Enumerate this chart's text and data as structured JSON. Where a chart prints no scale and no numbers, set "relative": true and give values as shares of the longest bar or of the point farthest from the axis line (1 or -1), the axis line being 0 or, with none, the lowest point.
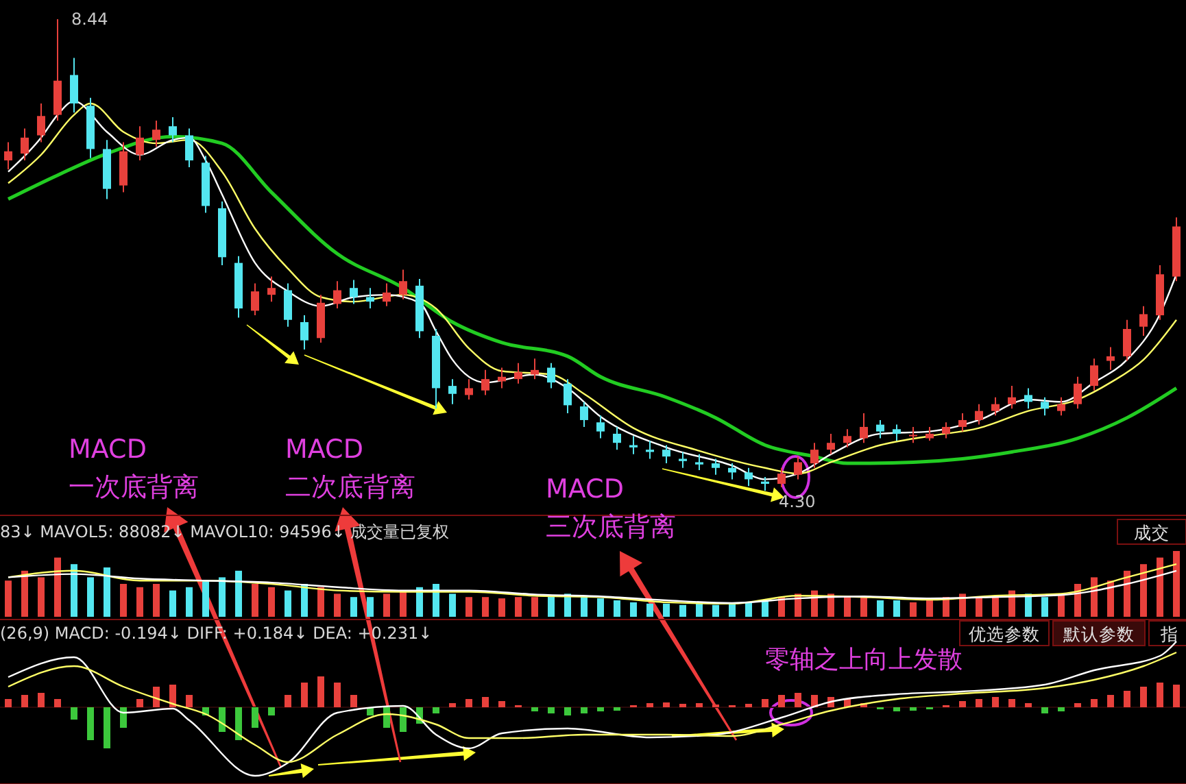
{
  "chart_data": [
    {
      "type": "candlestick",
      "categories": [
        null,
        null,
        null,
        null,
        null,
        null,
        null,
        null,
        null,
        null,
        null,
        null,
        null,
        null,
        null,
        null,
        null,
        null,
        null,
        null,
        null,
        null,
        null,
        null,
        null,
        null,
        null,
        null,
        null,
        null,
        null,
        null,
        null,
        null,
        null,
        null,
        null,
        null,
        null,
        null,
        null,
        null,
        null,
        null,
        null,
        null,
        null,
        null,
        null,
        null,
        null,
        null,
        null,
        null,
        null,
        null,
        null,
        null,
        null,
        null,
        null,
        null,
        null,
        null,
        null,
        null,
        null,
        null,
        null,
        null,
        null,
        null
      ],
      "ohlc": [
        [
          7.2,
          7.36,
          7.12,
          7.28
        ],
        [
          7.26,
          7.48,
          7.2,
          7.4
        ],
        [
          7.42,
          7.7,
          7.36,
          7.59
        ],
        [
          7.6,
          8.44,
          7.55,
          7.9
        ],
        [
          7.95,
          8.1,
          7.62,
          7.7
        ],
        [
          7.68,
          7.75,
          7.22,
          7.3
        ],
        [
          7.3,
          7.38,
          6.86,
          6.95
        ],
        [
          6.98,
          7.36,
          6.92,
          7.28
        ],
        [
          7.25,
          7.5,
          7.2,
          7.4
        ],
        [
          7.38,
          7.55,
          7.32,
          7.47
        ],
        [
          7.5,
          7.58,
          7.36,
          7.42
        ],
        [
          7.42,
          7.48,
          7.14,
          7.2
        ],
        [
          7.18,
          7.24,
          6.74,
          6.8
        ],
        [
          6.78,
          6.84,
          6.28,
          6.35
        ],
        [
          6.3,
          6.36,
          5.82,
          5.9
        ],
        [
          5.88,
          6.12,
          5.84,
          6.05
        ],
        [
          6.02,
          6.18,
          5.96,
          6.08
        ],
        [
          6.06,
          6.12,
          5.74,
          5.8
        ],
        [
          5.78,
          5.84,
          5.54,
          5.62
        ],
        [
          5.64,
          6.02,
          5.6,
          5.95
        ],
        [
          5.94,
          6.14,
          5.9,
          6.06
        ],
        [
          6.08,
          6.15,
          5.94,
          6.0
        ],
        [
          6.0,
          6.08,
          5.9,
          5.96
        ],
        [
          5.96,
          6.12,
          5.92,
          6.04
        ],
        [
          6.02,
          6.24,
          5.98,
          6.14
        ],
        [
          6.1,
          6.16,
          5.64,
          5.7
        ],
        [
          5.66,
          5.72,
          5.02,
          5.2
        ],
        [
          5.22,
          5.28,
          5.06,
          5.15
        ],
        [
          5.14,
          5.28,
          5.1,
          5.2
        ],
        [
          5.18,
          5.36,
          5.14,
          5.28
        ],
        [
          5.26,
          5.38,
          5.2,
          5.3
        ],
        [
          5.28,
          5.42,
          5.24,
          5.34
        ],
        [
          5.32,
          5.46,
          5.28,
          5.36
        ],
        [
          5.38,
          5.42,
          5.2,
          5.25
        ],
        [
          5.24,
          5.28,
          4.98,
          5.05
        ],
        [
          5.04,
          5.08,
          4.86,
          4.92
        ],
        [
          4.9,
          4.96,
          4.76,
          4.82
        ],
        [
          4.8,
          4.86,
          4.66,
          4.72
        ],
        [
          4.7,
          4.78,
          4.62,
          4.68
        ],
        [
          4.66,
          4.74,
          4.58,
          4.64
        ],
        [
          4.66,
          4.7,
          4.54,
          4.6
        ],
        [
          4.58,
          4.64,
          4.5,
          4.56
        ],
        [
          4.55,
          4.62,
          4.48,
          4.53
        ],
        [
          4.54,
          4.58,
          4.44,
          4.5
        ],
        [
          4.5,
          4.54,
          4.4,
          4.46
        ],
        [
          4.46,
          4.5,
          4.34,
          4.4
        ],
        [
          4.38,
          4.42,
          4.3,
          4.36
        ],
        [
          4.36,
          4.5,
          4.33,
          4.45
        ],
        [
          4.44,
          4.6,
          4.4,
          4.55
        ],
        [
          4.54,
          4.72,
          4.5,
          4.66
        ],
        [
          4.66,
          4.8,
          4.62,
          4.72
        ],
        [
          4.72,
          4.84,
          4.68,
          4.78
        ],
        [
          4.76,
          4.98,
          4.72,
          4.86
        ],
        [
          4.88,
          4.92,
          4.76,
          4.82
        ],
        [
          4.84,
          4.88,
          4.74,
          4.8
        ],
        [
          4.78,
          4.86,
          4.72,
          4.79
        ],
        [
          4.76,
          4.86,
          4.74,
          4.8
        ],
        [
          4.8,
          4.9,
          4.76,
          4.86
        ],
        [
          4.86,
          4.98,
          4.82,
          4.92
        ],
        [
          4.92,
          5.06,
          4.88,
          5.0
        ],
        [
          5.0,
          5.12,
          4.96,
          5.06
        ],
        [
          5.06,
          5.22,
          5.02,
          5.12
        ],
        [
          5.14,
          5.2,
          5.02,
          5.08
        ],
        [
          5.08,
          5.12,
          4.96,
          5.02
        ],
        [
          5.0,
          5.12,
          4.96,
          5.06
        ],
        [
          5.06,
          5.3,
          5.02,
          5.24
        ],
        [
          5.22,
          5.46,
          5.18,
          5.4
        ],
        [
          5.44,
          5.56,
          5.36,
          5.48
        ],
        [
          5.48,
          5.8,
          5.44,
          5.72
        ],
        [
          5.74,
          5.92,
          5.66,
          5.85
        ],
        [
          5.84,
          6.28,
          5.8,
          6.2
        ],
        [
          6.18,
          6.7,
          6.14,
          6.62
        ]
      ],
      "series": [
        {
          "type": "line",
          "color": "#22cc22",
          "values": [
            6.86,
            null,
            null,
            7.07,
            null,
            null,
            7.26,
            null,
            null,
            null,
            7.41,
            null,
            null,
            7.35,
            null,
            null,
            6.92,
            null,
            null,
            null,
            6.38,
            null,
            null,
            null,
            6.08,
            null,
            null,
            5.78,
            null,
            null,
            5.6,
            null,
            null,
            null,
            5.48,
            null,
            5.3,
            null,
            null,
            null,
            5.12,
            null,
            null,
            4.94,
            null,
            null,
            4.7,
            null,
            null,
            4.6,
            null,
            4.54,
            null,
            null,
            null,
            4.55,
            null,
            null,
            4.58,
            null,
            null,
            4.64,
            null,
            null,
            null,
            4.76,
            null,
            null,
            4.94,
            null,
            null,
            5.2
          ]
        },
        {
          "type": "line",
          "color": "#ffff66",
          "values": [
            7.0,
            null,
            7.25,
            null,
            7.6,
            7.7,
            null,
            7.45,
            null,
            7.35,
            null,
            7.38,
            null,
            7.1,
            null,
            6.6,
            null,
            6.25,
            null,
            6.0,
            null,
            5.96,
            null,
            null,
            6.02,
            null,
            5.9,
            null,
            5.55,
            null,
            5.35,
            null,
            null,
            5.32,
            null,
            5.15,
            null,
            null,
            4.85,
            null,
            null,
            null,
            4.65,
            null,
            null,
            null,
            4.5,
            null,
            4.45,
            null,
            4.55,
            null,
            null,
            4.7,
            null,
            null,
            4.78,
            null,
            null,
            4.85,
            null,
            null,
            5.0,
            null,
            null,
            5.1,
            null,
            5.25,
            null,
            5.45,
            null,
            5.8
          ]
        },
        {
          "type": "line",
          "color": "#ffffff",
          "values": [
            7.1,
            null,
            7.4,
            7.6,
            7.72,
            null,
            7.45,
            null,
            7.25,
            null,
            7.38,
            7.4,
            7.2,
            6.9,
            null,
            6.3,
            null,
            6.05,
            null,
            5.92,
            null,
            6.0,
            null,
            6.02,
            null,
            5.95,
            5.7,
            5.45,
            null,
            5.25,
            null,
            null,
            5.32,
            null,
            5.2,
            null,
            4.95,
            null,
            null,
            null,
            4.68,
            null,
            null,
            null,
            4.52,
            null,
            4.4,
            null,
            4.45,
            null,
            4.62,
            null,
            null,
            4.8,
            null,
            null,
            4.82,
            null,
            null,
            4.92,
            null,
            null,
            5.1,
            null,
            5.08,
            null,
            5.25,
            null,
            5.45,
            null,
            5.85,
            6.2
          ]
        }
      ],
      "annotations": [
        "8.44",
        "4.30",
        "MACD\n一次底背离",
        "MACD\n二次底背离",
        "MACD\n三次底背离"
      ]
    },
    {
      "type": "bar",
      "relative": true,
      "title": "83↓ MAVOL5: 88082↓ MAVOL10: 94596↓ 成交量已复权",
      "categories": [
        null,
        null,
        null,
        null,
        null,
        null,
        null,
        null,
        null,
        null,
        null,
        null,
        null,
        null,
        null,
        null,
        null,
        null,
        null,
        null,
        null,
        null,
        null,
        null,
        null,
        null,
        null,
        null,
        null,
        null,
        null,
        null,
        null,
        null,
        null,
        null,
        null,
        null,
        null,
        null,
        null,
        null,
        null,
        null,
        null,
        null,
        null,
        null,
        null,
        null,
        null,
        null,
        null,
        null,
        null,
        null,
        null,
        null,
        null,
        null,
        null,
        null,
        null,
        null,
        null,
        null,
        null,
        null,
        null,
        null,
        null,
        null
      ],
      "series": [
        {
          "type": "bar",
          "values": [
            0.55,
            0.7,
            0.6,
            0.9,
            0.8,
            0.6,
            0.75,
            0.5,
            0.45,
            0.5,
            0.4,
            0.45,
            0.55,
            0.6,
            0.7,
            0.5,
            0.45,
            0.4,
            0.5,
            0.45,
            0.35,
            0.3,
            0.3,
            0.35,
            0.4,
            0.45,
            0.5,
            0.35,
            0.3,
            0.3,
            0.28,
            0.3,
            0.3,
            0.32,
            0.35,
            0.3,
            0.28,
            0.25,
            0.22,
            0.2,
            0.2,
            0.18,
            0.2,
            0.18,
            0.2,
            0.22,
            0.25,
            0.3,
            0.35,
            0.4,
            0.35,
            0.3,
            0.3,
            0.25,
            0.25,
            0.22,
            0.25,
            0.3,
            0.35,
            0.3,
            0.32,
            0.4,
            0.35,
            0.3,
            0.35,
            0.5,
            0.6,
            0.55,
            0.7,
            0.8,
            0.9,
            1
          ],
          "colors": [
            "#e8413c",
            "#e8413c",
            "#e8413c",
            "#e8413c",
            "#54e6f0",
            "#54e6f0",
            "#54e6f0",
            "#e8413c",
            "#e8413c",
            "#e8413c",
            "#54e6f0",
            "#54e6f0",
            "#54e6f0",
            "#54e6f0",
            "#54e6f0",
            "#e8413c",
            "#e8413c",
            "#54e6f0",
            "#54e6f0",
            "#e8413c",
            "#e8413c",
            "#54e6f0",
            "#54e6f0",
            "#e8413c",
            "#e8413c",
            "#54e6f0",
            "#54e6f0",
            "#54e6f0",
            "#e8413c",
            "#e8413c",
            "#e8413c",
            "#e8413c",
            "#e8413c",
            "#54e6f0",
            "#54e6f0",
            "#54e6f0",
            "#54e6f0",
            "#54e6f0",
            "#54e6f0",
            "#54e6f0",
            "#54e6f0",
            "#54e6f0",
            "#54e6f0",
            "#54e6f0",
            "#54e6f0",
            "#54e6f0",
            "#54e6f0",
            "#e8413c",
            "#e8413c",
            "#e8413c",
            "#e8413c",
            "#e8413c",
            "#e8413c",
            "#54e6f0",
            "#54e6f0",
            "#e8413c",
            "#e8413c",
            "#e8413c",
            "#e8413c",
            "#e8413c",
            "#e8413c",
            "#e8413c",
            "#54e6f0",
            "#54e6f0",
            "#e8413c",
            "#e8413c",
            "#e8413c",
            "#e8413c",
            "#e8413c",
            "#e8413c",
            "#e8413c",
            "#e8413c"
          ]
        },
        {
          "type": "line",
          "color": "#ffff66",
          "values": [
            0.6,
            null,
            null,
            null,
            0.7,
            null,
            null,
            null,
            0.55,
            null,
            null,
            null,
            0.55,
            null,
            null,
            null,
            0.5,
            null,
            null,
            null,
            0.4,
            null,
            null,
            null,
            0.38,
            null,
            null,
            null,
            0.38,
            null,
            null,
            null,
            0.32,
            null,
            null,
            null,
            0.3,
            null,
            null,
            null,
            0.22,
            null,
            null,
            null,
            0.2,
            null,
            null,
            null,
            0.32,
            null,
            null,
            null,
            0.3,
            null,
            null,
            null,
            0.26,
            null,
            null,
            null,
            0.32,
            null,
            null,
            null,
            0.35,
            null,
            null,
            null,
            0.6,
            null,
            null,
            0.8
          ]
        },
        {
          "type": "line",
          "color": "#ffffff",
          "values": [
            0.6,
            null,
            null,
            null,
            0.65,
            null,
            null,
            null,
            0.58,
            null,
            null,
            null,
            0.55,
            null,
            null,
            null,
            0.52,
            null,
            null,
            null,
            0.45,
            null,
            null,
            null,
            0.4,
            null,
            null,
            null,
            0.4,
            null,
            null,
            null,
            0.34,
            null,
            null,
            null,
            0.31,
            null,
            null,
            null,
            0.25,
            null,
            null,
            null,
            0.21,
            null,
            null,
            null,
            0.28,
            null,
            null,
            null,
            0.31,
            null,
            null,
            null,
            0.28,
            null,
            null,
            null,
            0.3,
            null,
            null,
            null,
            0.33,
            null,
            null,
            null,
            0.5,
            null,
            null,
            0.7
          ]
        }
      ],
      "annotations": [
        "成交"
      ]
    },
    {
      "type": "bar",
      "relative": true,
      "title": "(26,9) MACD: -0.194↓ DIFF: +0.184↓ DEA: +0.231↓",
      "categories": [
        null,
        null,
        null,
        null,
        null,
        null,
        null,
        null,
        null,
        null,
        null,
        null,
        null,
        null,
        null,
        null,
        null,
        null,
        null,
        null,
        null,
        null,
        null,
        null,
        null,
        null,
        null,
        null,
        null,
        null,
        null,
        null,
        null,
        null,
        null,
        null,
        null,
        null,
        null,
        null,
        null,
        null,
        null,
        null,
        null,
        null,
        null,
        null,
        null,
        null,
        null,
        null,
        null,
        null,
        null,
        null,
        null,
        null,
        null,
        null,
        null,
        null,
        null,
        null,
        null,
        null,
        null,
        null,
        null,
        null,
        null,
        null
      ],
      "series": [
        {
          "type": "bar",
          "values": [
            0.12,
            0.18,
            0.21,
            0.12,
            -0.18,
            -0.48,
            -0.6,
            -0.3,
            0.12,
            0.3,
            0.33,
            0.18,
            -0.12,
            -0.36,
            -0.48,
            -0.3,
            -0.12,
            0.18,
            0.36,
            0.45,
            0.36,
            0.18,
            -0.12,
            -0.3,
            -0.36,
            -0.24,
            -0.09,
            0.06,
            0.12,
            0.15,
            0.09,
            0.03,
            -0.06,
            -0.09,
            -0.12,
            -0.09,
            -0.06,
            -0.05,
            0.03,
            0.06,
            0.07,
            0.05,
            0.06,
            0.04,
            0.03,
            0.05,
            0.12,
            0.18,
            0.21,
            0.18,
            0.15,
            0.12,
            0.06,
            -0.03,
            -0.06,
            -0.05,
            -0.03,
            0.03,
            0.09,
            0.12,
            0.15,
            0.12,
            0.06,
            -0.09,
            -0.06,
            0.06,
            0.12,
            0.18,
            0.24,
            0.3,
            0.36,
            0.33
          ],
          "colors": [
            "#e8413c",
            "#e8413c",
            "#e8413c",
            "#e8413c",
            "#3cc83c",
            "#3cc83c",
            "#3cc83c",
            "#3cc83c",
            "#e8413c",
            "#e8413c",
            "#e8413c",
            "#e8413c",
            "#3cc83c",
            "#3cc83c",
            "#3cc83c",
            "#3cc83c",
            "#3cc83c",
            "#e8413c",
            "#e8413c",
            "#e8413c",
            "#e8413c",
            "#e8413c",
            "#3cc83c",
            "#3cc83c",
            "#3cc83c",
            "#3cc83c",
            "#3cc83c",
            "#e8413c",
            "#e8413c",
            "#e8413c",
            "#e8413c",
            "#e8413c",
            "#3cc83c",
            "#3cc83c",
            "#3cc83c",
            "#3cc83c",
            "#3cc83c",
            "#3cc83c",
            "#e8413c",
            "#e8413c",
            "#e8413c",
            "#e8413c",
            "#e8413c",
            "#e8413c",
            "#e8413c",
            "#e8413c",
            "#e8413c",
            "#e8413c",
            "#e8413c",
            "#e8413c",
            "#e8413c",
            "#e8413c",
            "#e8413c",
            "#3cc83c",
            "#3cc83c",
            "#3cc83c",
            "#3cc83c",
            "#e8413c",
            "#e8413c",
            "#e8413c",
            "#e8413c",
            "#e8413c",
            "#e8413c",
            "#3cc83c",
            "#3cc83c",
            "#e8413c",
            "#e8413c",
            "#e8413c",
            "#e8413c",
            "#e8413c",
            "#e8413c",
            "#e8413c"
          ]
        },
        {
          "type": "line",
          "color": "#ffffff",
          "values": [
            0.44,
            null,
            null,
            null,
            0.73,
            null,
            null,
            -0.08,
            null,
            null,
            -0.02,
            -0.19,
            null,
            null,
            null,
            -1.0,
            null,
            -0.81,
            null,
            null,
            -0.08,
            null,
            null,
            null,
            0.02,
            null,
            -0.4,
            null,
            -0.6,
            null,
            -0.38,
            null,
            null,
            null,
            -0.31,
            null,
            null,
            null,
            null,
            -0.44,
            null,
            null,
            null,
            -0.4,
            null,
            null,
            null,
            -0.15,
            null,
            null,
            0.08,
            null,
            null,
            null,
            0.19,
            null,
            null,
            null,
            0.23,
            null,
            null,
            null,
            null,
            0.33,
            null,
            null,
            0.54,
            null,
            null,
            null,
            0.75,
            0.96
          ]
        },
        {
          "type": "line",
          "color": "#ffff66",
          "values": [
            0.3,
            null,
            null,
            null,
            0.6,
            null,
            null,
            0.3,
            null,
            null,
            0.05,
            null,
            -0.1,
            null,
            null,
            -0.55,
            null,
            -0.8,
            null,
            null,
            -0.4,
            null,
            null,
            -0.1,
            null,
            null,
            -0.25,
            null,
            -0.45,
            null,
            null,
            -0.45,
            null,
            null,
            null,
            -0.4,
            null,
            null,
            null,
            null,
            -0.4,
            null,
            null,
            null,
            -0.42,
            null,
            null,
            -0.25,
            null,
            null,
            -0.05,
            null,
            null,
            null,
            0.12,
            null,
            null,
            null,
            0.2,
            null,
            null,
            null,
            null,
            0.28,
            null,
            null,
            0.4,
            null,
            null,
            0.6,
            null,
            0.8
          ]
        }
      ],
      "annotations": [
        "零轴之上向上发散",
        "优选参数",
        "默认参数",
        "指"
      ]
    }
  ]
}
